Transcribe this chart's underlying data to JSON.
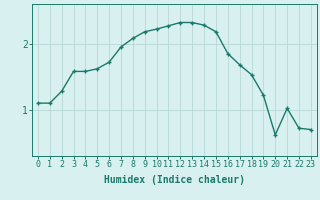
{
  "xlabel": "Humidex (Indice chaleur)",
  "ylabel": "",
  "x": [
    0,
    1,
    2,
    3,
    4,
    5,
    6,
    7,
    8,
    9,
    10,
    11,
    12,
    13,
    14,
    15,
    16,
    17,
    18,
    19,
    20,
    21,
    22,
    23
  ],
  "y": [
    1.1,
    1.1,
    1.28,
    1.58,
    1.58,
    1.62,
    1.72,
    1.95,
    2.08,
    2.18,
    2.22,
    2.27,
    2.32,
    2.32,
    2.28,
    2.18,
    1.85,
    1.68,
    1.53,
    1.22,
    0.62,
    1.02,
    0.72,
    0.7
  ],
  "line_color": "#1a7a6a",
  "marker": "+",
  "marker_size": 3.5,
  "marker_lw": 1.0,
  "bg_color": "#d8f0f0",
  "grid_color": "#b8d8d8",
  "tick_label_color": "#1a7a6a",
  "ylim": [
    0.3,
    2.6
  ],
  "xlim": [
    -0.5,
    23.5
  ],
  "yticks": [
    1,
    2
  ],
  "xticks": [
    0,
    1,
    2,
    3,
    4,
    5,
    6,
    7,
    8,
    9,
    10,
    11,
    12,
    13,
    14,
    15,
    16,
    17,
    18,
    19,
    20,
    21,
    22,
    23
  ],
  "fontsize_tick": 6,
  "fontsize_xlabel": 7
}
